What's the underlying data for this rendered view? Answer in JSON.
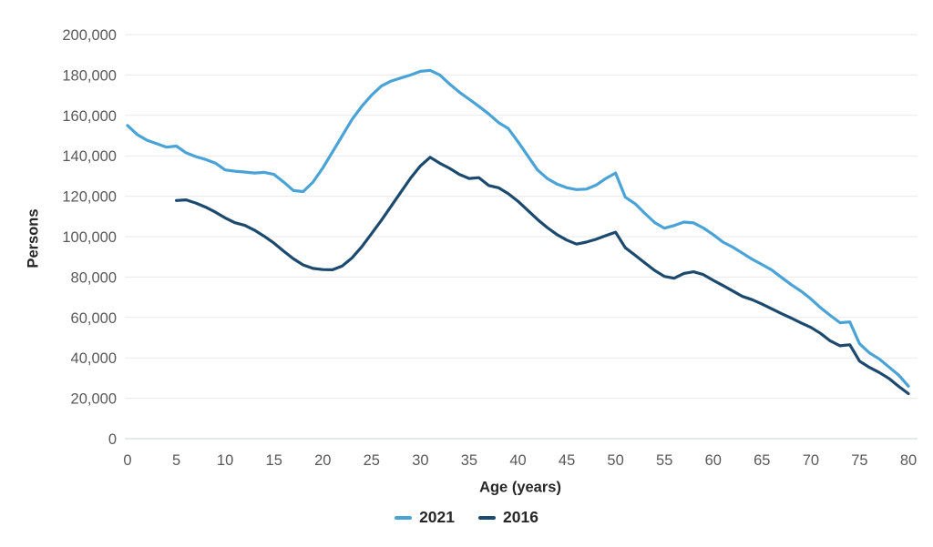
{
  "chart_data": {
    "type": "line",
    "title": "",
    "xlabel": "Age (years)",
    "ylabel": "Persons",
    "xlim": [
      0,
      80
    ],
    "ylim": [
      0,
      200000
    ],
    "grid": "horizontal",
    "legend_position": "bottom",
    "x_ticks": [
      0,
      5,
      10,
      15,
      20,
      25,
      30,
      35,
      40,
      45,
      50,
      55,
      60,
      65,
      70,
      75,
      80
    ],
    "y_ticks": [
      0,
      20000,
      40000,
      60000,
      80000,
      100000,
      120000,
      140000,
      160000,
      180000,
      200000
    ],
    "y_tick_labels": [
      "0",
      "20,000",
      "40,000",
      "60,000",
      "80,000",
      "100,000",
      "120,000",
      "140,000",
      "160,000",
      "180,000",
      "200,000"
    ],
    "series": [
      {
        "name": "2021",
        "color": "#4aa3d6",
        "age_start": 0,
        "values": [
          155000,
          150500,
          147700,
          146000,
          144300,
          144800,
          141500,
          139600,
          138200,
          136400,
          133000,
          132400,
          132000,
          131500,
          131800,
          130800,
          127000,
          122800,
          122300,
          127000,
          134000,
          142000,
          150000,
          158000,
          164500,
          170000,
          174500,
          177000,
          178500,
          180000,
          181800,
          182300,
          180000,
          175500,
          171500,
          168000,
          164500,
          160700,
          156500,
          153500,
          147000,
          140000,
          133000,
          128800,
          126000,
          124200,
          123300,
          123500,
          125500,
          128800,
          131500,
          119500,
          116300,
          111500,
          107000,
          104200,
          105500,
          107200,
          106800,
          104300,
          101000,
          97300,
          94800,
          91800,
          88800,
          86200,
          83500,
          79800,
          76200,
          73000,
          69200,
          64800,
          61000,
          57400,
          57800,
          47000,
          42500,
          39500,
          35500,
          31500,
          26000
        ]
      },
      {
        "name": "2016",
        "color": "#1c4a6e",
        "age_start": 5,
        "values": [
          117900,
          118200,
          116600,
          114600,
          112100,
          109300,
          106900,
          105600,
          103200,
          100200,
          96800,
          92800,
          89000,
          86000,
          84300,
          83700,
          83600,
          85500,
          89500,
          95000,
          101500,
          108000,
          115000,
          122000,
          129000,
          135000,
          139300,
          136300,
          133800,
          130800,
          128800,
          129200,
          125300,
          124200,
          121300,
          117500,
          113000,
          108500,
          104500,
          101000,
          98300,
          96300,
          97300,
          98700,
          100500,
          102200,
          94500,
          90800,
          87000,
          83300,
          80300,
          79400,
          81800,
          82600,
          81200,
          78400,
          75800,
          73100,
          70400,
          68800,
          66600,
          64300,
          61900,
          59700,
          57300,
          55100,
          52100,
          48400,
          46000,
          46500,
          38400,
          35300,
          32800,
          29800,
          25900,
          22300
        ]
      }
    ]
  }
}
